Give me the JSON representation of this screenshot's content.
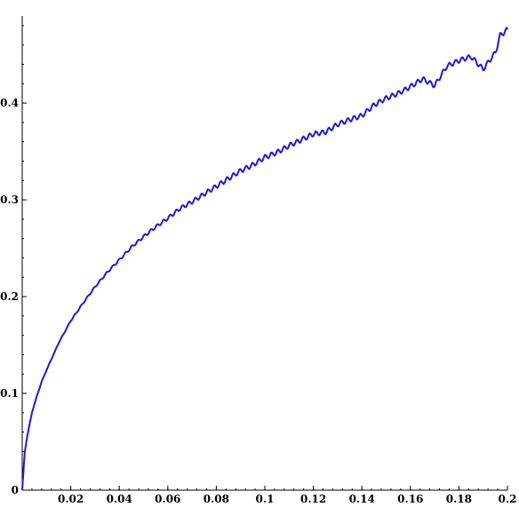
{
  "chart_data": {
    "type": "line",
    "title": "",
    "xlabel": "",
    "ylabel": "",
    "xlim": [
      0,
      0.2
    ],
    "ylim": [
      0,
      0.49
    ],
    "grid": false,
    "legend": "none",
    "x_ticks": [
      0.02,
      0.04,
      0.06,
      0.08,
      0.1,
      0.12,
      0.14,
      0.16,
      0.18,
      0.2
    ],
    "x_tick_labels": [
      "0.02",
      "0.04",
      "0.06",
      "0.08",
      "0.1",
      "0.12",
      "0.14",
      "0.16",
      "0.18",
      "0.2"
    ],
    "y_ticks": [
      0,
      0.1,
      0.2,
      0.3,
      0.4
    ],
    "y_tick_labels": [
      "0",
      "0.1",
      "0.2",
      "0.3",
      "0.4"
    ],
    "series": [
      {
        "color": "#1a1ad6",
        "x": [
          0,
          0.001,
          0.002,
          0.004,
          0.006,
          0.008,
          0.01,
          0.015,
          0.02,
          0.025,
          0.03,
          0.035,
          0.04,
          0.045,
          0.05,
          0.055,
          0.06,
          0.065,
          0.07,
          0.075,
          0.08,
          0.085,
          0.09,
          0.095,
          0.1,
          0.105,
          0.11,
          0.115,
          0.12,
          0.125,
          0.13,
          0.135,
          0.14,
          0.145,
          0.15,
          0.155,
          0.16,
          0.165,
          0.17,
          0.175,
          0.18,
          0.185,
          0.19,
          0.195,
          0.197,
          0.2
        ],
        "values": [
          0.0,
          0.038,
          0.055,
          0.08,
          0.097,
          0.112,
          0.124,
          0.152,
          0.175,
          0.193,
          0.21,
          0.225,
          0.238,
          0.251,
          0.262,
          0.272,
          0.281,
          0.291,
          0.298,
          0.306,
          0.314,
          0.322,
          0.33,
          0.336,
          0.344,
          0.349,
          0.356,
          0.362,
          0.368,
          0.37,
          0.378,
          0.383,
          0.387,
          0.398,
          0.405,
          0.41,
          0.417,
          0.425,
          0.418,
          0.438,
          0.444,
          0.448,
          0.435,
          0.452,
          0.47,
          0.476
        ]
      }
    ]
  }
}
